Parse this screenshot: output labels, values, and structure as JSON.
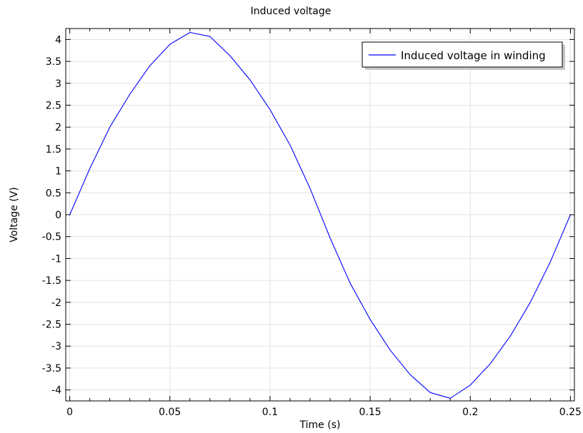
{
  "chart_data": {
    "type": "line",
    "title": "Induced voltage",
    "xlabel": "Time (s)",
    "ylabel": "Voltage (V)",
    "xlim": [
      -0.002,
      0.252
    ],
    "ylim": [
      -4.25,
      4.25
    ],
    "grid": true,
    "legend_position": "top-right",
    "x_ticks": [
      0,
      0.05,
      0.1,
      0.15,
      0.2,
      0.25
    ],
    "x_tick_labels": [
      "0",
      "0.05",
      "0.1",
      "0.15",
      "0.2",
      "0.25"
    ],
    "y_ticks": [
      4,
      3.5,
      3,
      2.5,
      2,
      1.5,
      1,
      0.5,
      0,
      -0.5,
      -1,
      -1.5,
      -2,
      -2.5,
      -3,
      -3.5,
      -4
    ],
    "y_tick_labels": [
      "4",
      "3.5",
      "3",
      "2.5",
      "2",
      "1.5",
      "1",
      "0.5",
      "0",
      "-0.5",
      "-1",
      "-1.5",
      "-2",
      "-2.5",
      "-3",
      "-3.5",
      "-4"
    ],
    "series": [
      {
        "name": "Induced voltage in winding",
        "color": "#0000ff",
        "x": [
          0,
          0.01,
          0.02,
          0.03,
          0.04,
          0.05,
          0.06,
          0.07,
          0.08,
          0.09,
          0.1,
          0.11,
          0.12,
          0.13,
          0.14,
          0.15,
          0.16,
          0.17,
          0.18,
          0.19,
          0.2,
          0.21,
          0.22,
          0.23,
          0.24,
          0.25
        ],
        "y": [
          0,
          1.05,
          2.0,
          2.75,
          3.4,
          3.89,
          4.16,
          4.07,
          3.63,
          3.08,
          2.4,
          1.59,
          0.6,
          -0.53,
          -1.56,
          -2.39,
          -3.09,
          -3.65,
          -4.06,
          -4.19,
          -3.89,
          -3.4,
          -2.77,
          -2.0,
          -1.07,
          0
        ]
      }
    ]
  }
}
